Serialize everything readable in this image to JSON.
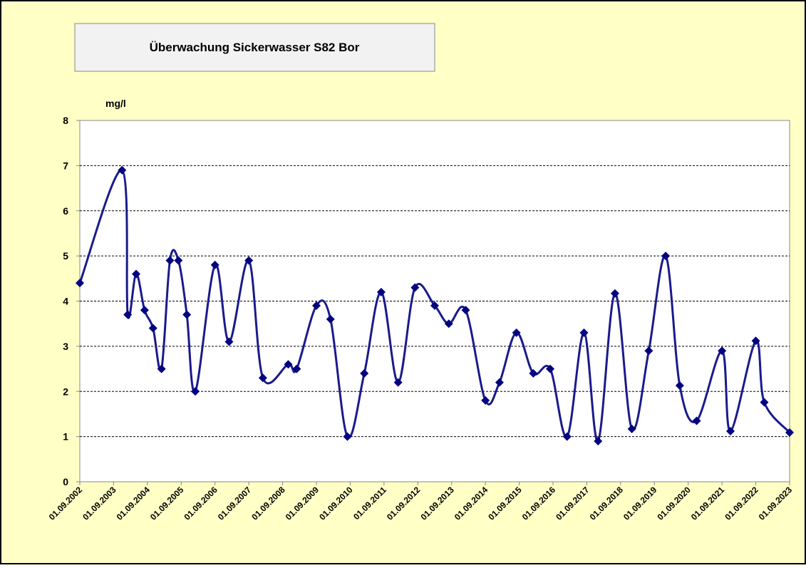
{
  "chart_data": {
    "type": "line",
    "title": "Überwachung  Sickerwasser S82 Bor",
    "y_axis_label": "mg/l",
    "x": [
      "01.09.2002",
      "01.12.2003",
      "01.02.2004",
      "01.05.2004",
      "01.08.2004",
      "01.11.2004",
      "01.02.2005",
      "01.05.2005",
      "01.08.2005",
      "01.11.2005",
      "01.02.2006",
      "01.09.2006",
      "01.02.2007",
      "01.09.2007",
      "01.02.2008",
      "01.11.2008",
      "01.02.2009",
      "01.09.2009",
      "01.02.2010",
      "01.08.2010",
      "01.02.2011",
      "01.08.2011",
      "01.02.2012",
      "01.08.2012",
      "01.03.2013",
      "01.08.2013",
      "01.02.2014",
      "01.09.2014",
      "01.02.2015",
      "01.08.2015",
      "01.02.2016",
      "01.08.2016",
      "01.02.2017",
      "01.08.2017",
      "01.01.2018",
      "01.07.2018",
      "01.01.2019",
      "01.07.2019",
      "01.01.2020",
      "01.06.2020",
      "01.12.2020",
      "01.09.2021",
      "01.12.2021",
      "01.09.2022",
      "01.12.2022",
      "01.09.2023"
    ],
    "series": [
      {
        "name": "Bor",
        "color": "#1a1a8c",
        "values": [
          4.4,
          6.9,
          3.7,
          4.6,
          3.8,
          3.4,
          2.5,
          4.9,
          4.9,
          3.7,
          2.0,
          4.8,
          3.1,
          4.9,
          2.3,
          2.6,
          2.5,
          3.9,
          3.6,
          1.0,
          2.4,
          4.2,
          2.2,
          4.3,
          3.9,
          3.5,
          3.8,
          1.8,
          2.2,
          3.3,
          2.4,
          2.5,
          1.0,
          3.3,
          0.9,
          4.17,
          1.17,
          2.9,
          5.0,
          2.13,
          1.35,
          2.9,
          1.12,
          3.12,
          1.76,
          1.09
        ]
      }
    ],
    "xlim": [
      "01.09.2002",
      "01.09.2023"
    ],
    "xticks": [
      "01.09.2002",
      "01.09.2003",
      "01.09.2004",
      "01.09.2005",
      "01.09.2006",
      "01.09.2007",
      "01.09.2008",
      "01.09.2009",
      "01.09.2010",
      "01.09.2011",
      "01.09.2012",
      "01.09.2013",
      "01.09.2014",
      "01.09.2015",
      "01.09.2016",
      "01.09.2017",
      "01.09.2018",
      "01.09.2019",
      "01.09.2020",
      "01.09.2021",
      "01.09.2022",
      "01.09.2023"
    ],
    "ylim": [
      0,
      8
    ],
    "yticks": [
      0,
      1,
      2,
      3,
      4,
      5,
      6,
      7,
      8
    ],
    "grid": true,
    "smooth": true
  }
}
